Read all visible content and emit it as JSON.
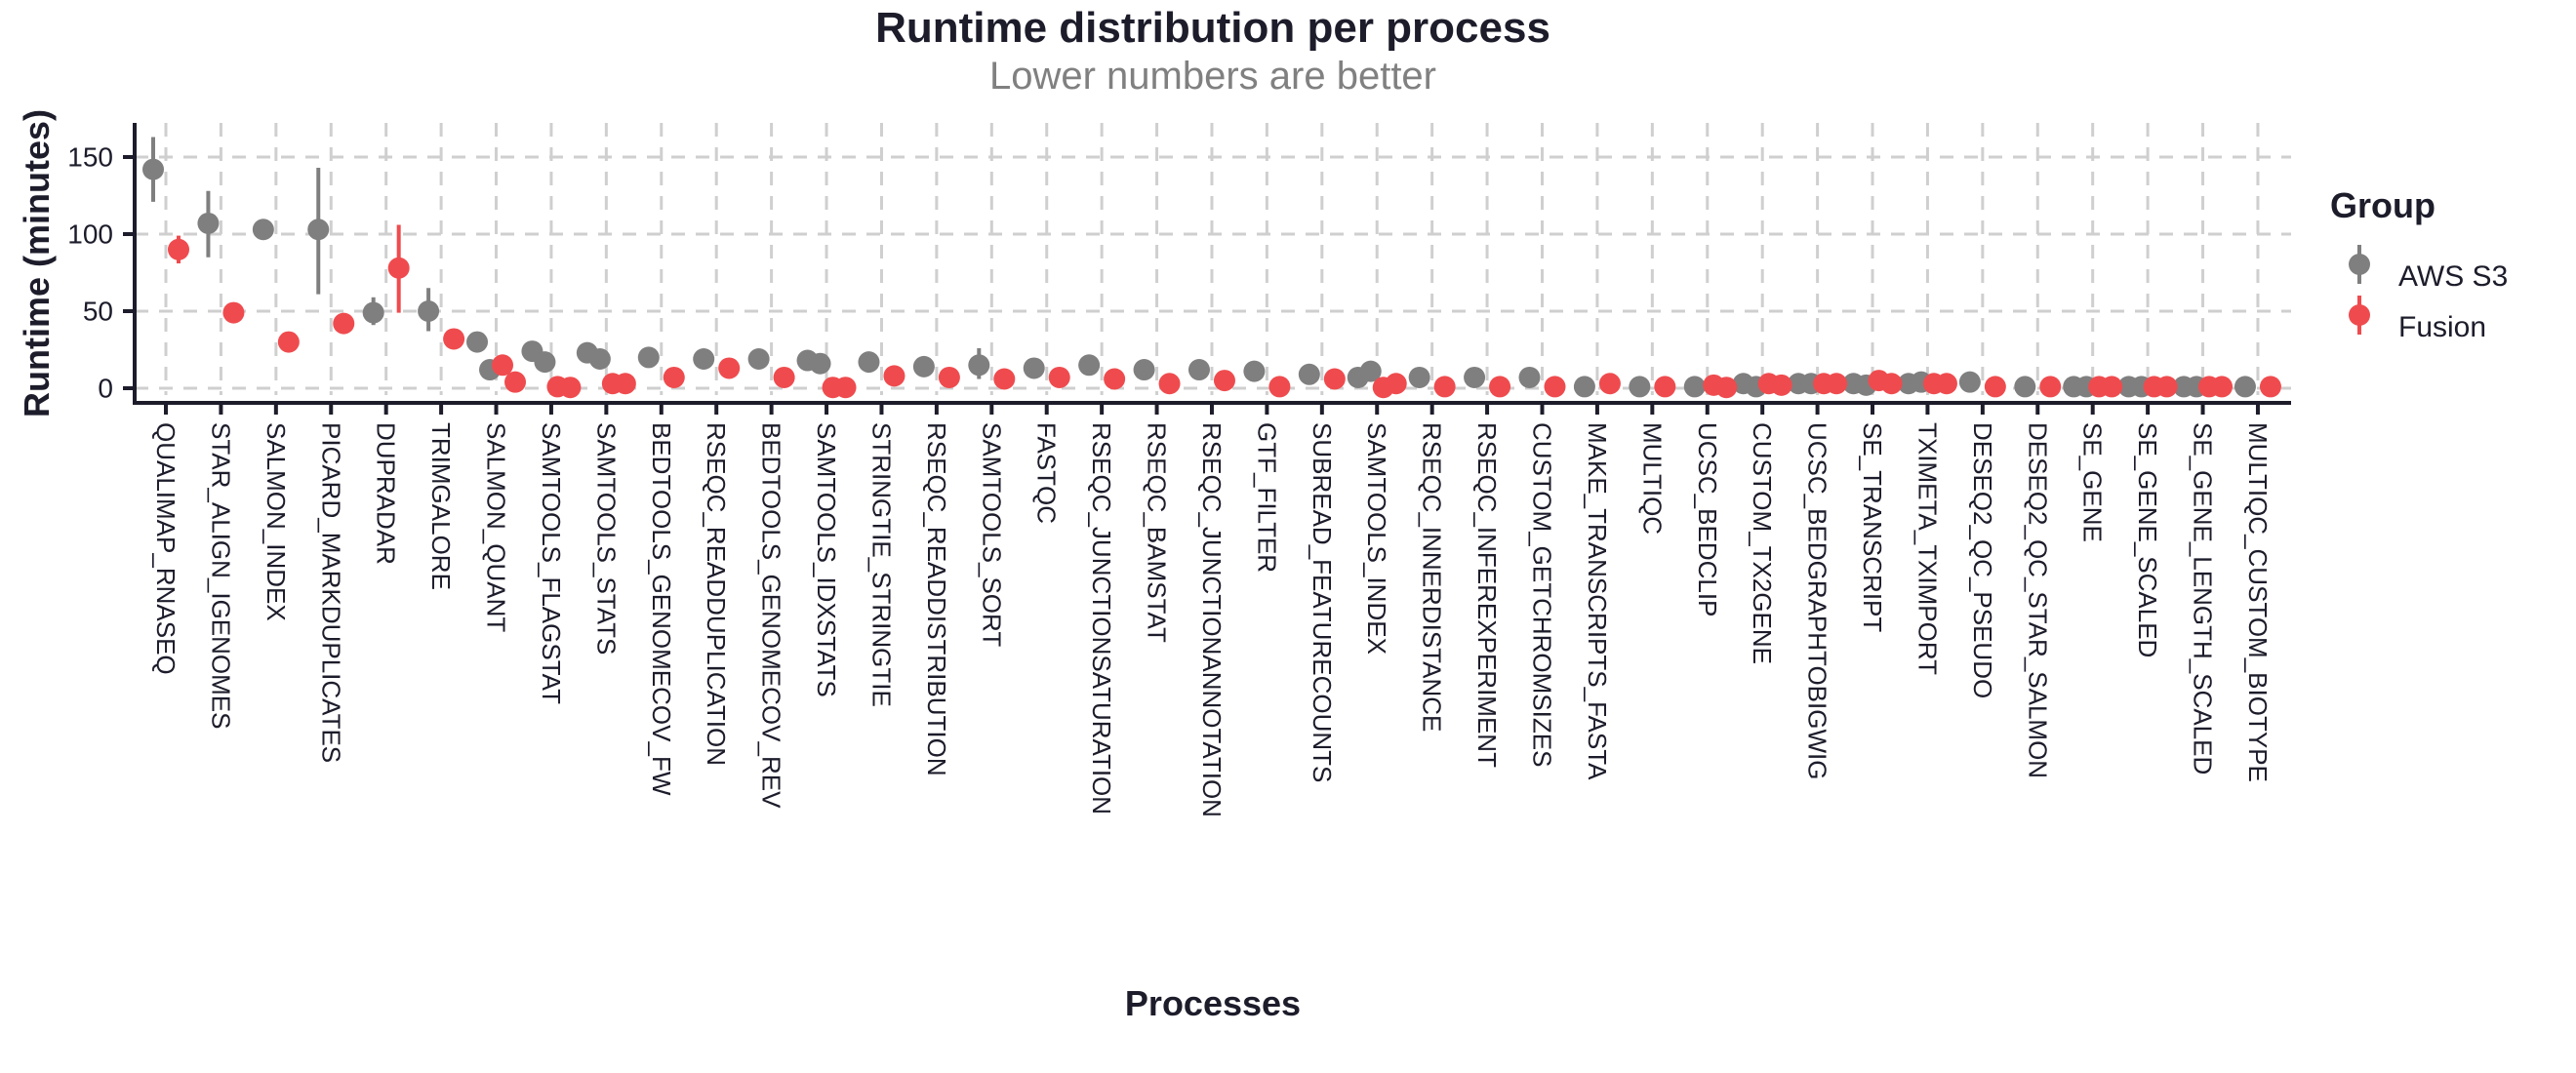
{
  "chart_data": {
    "type": "scatter",
    "style": "pointrange-dodged",
    "title": "Runtime distribution per process",
    "subtitle": "Lower numbers are better",
    "xlabel": "Processes",
    "ylabel": "Runtime (minutes)",
    "yticks": [
      0,
      50,
      100,
      150
    ],
    "ylim": [
      0,
      170
    ],
    "grid": "dashed-both-axes",
    "legend": {
      "title": "Group",
      "position": "right"
    },
    "categories": [
      "QUALIMAP_RNASEQ",
      "STAR_ALIGN_IGENOMES",
      "SALMON_INDEX",
      "PICARD_MARKDUPLICATES",
      "DUPRADAR",
      "TRIMGALORE",
      "SALMON_QUANT",
      "SAMTOOLS_FLAGSTAT",
      "SAMTOOLS_STATS",
      "BEDTOOLS_GENOMECOV_FW",
      "RSEQC_READDUPLICATION",
      "BEDTOOLS_GENOMECOV_REV",
      "SAMTOOLS_IDXSTATS",
      "STRINGTIE_STRINGTIE",
      "RSEQC_READDISTRIBUTION",
      "SAMTOOLS_SORT",
      "FASTQC",
      "RSEQC_JUNCTIONSATURATION",
      "RSEQC_BAMSTAT",
      "RSEQC_JUNCTIONANNOTATION",
      "GTF_FILTER",
      "SUBREAD_FEATURECOUNTS",
      "SAMTOOLS_INDEX",
      "RSEQC_INNERDISTANCE",
      "RSEQC_INFEREXPERIMENT",
      "CUSTOM_GETCHROMSIZES",
      "MAKE_TRANSCRIPTS_FASTA",
      "MULTIQC",
      "UCSC_BEDCLIP",
      "CUSTOM_TX2GENE",
      "UCSC_BEDGRAPHTOBIGWIG",
      "SE_TRANSCRIPT",
      "TXIMETA_TXIMPORT",
      "DESEQ2_QC_PSEUDO",
      "DESEQ2_QC_STAR_SALMON",
      "SE_GENE",
      "SE_GENE_SCALED",
      "SE_GENE_LENGTH_SCALED",
      "MULTIQC_CUSTOM_BIOTYPE"
    ],
    "series": [
      {
        "name": "AWS S3",
        "color": "#7f7f7f",
        "points": [
          {
            "y": [
              142
            ],
            "range": [
              121,
              163
            ]
          },
          {
            "y": [
              107
            ],
            "range": [
              85,
              128
            ]
          },
          {
            "y": [
              103
            ]
          },
          {
            "y": [
              103
            ],
            "range": [
              61,
              143
            ]
          },
          {
            "y": [
              49
            ],
            "range": [
              41,
              59
            ]
          },
          {
            "y": [
              50
            ],
            "range": [
              37,
              65
            ]
          },
          {
            "y": [
              30,
              12
            ]
          },
          {
            "y": [
              24,
              17
            ]
          },
          {
            "y": [
              23,
              19
            ]
          },
          {
            "y": [
              20
            ]
          },
          {
            "y": [
              19
            ]
          },
          {
            "y": [
              19
            ]
          },
          {
            "y": [
              18,
              16
            ]
          },
          {
            "y": [
              17
            ]
          },
          {
            "y": [
              14
            ]
          },
          {
            "y": [
              15
            ],
            "range": [
              6,
              26
            ]
          },
          {
            "y": [
              13
            ]
          },
          {
            "y": [
              15
            ]
          },
          {
            "y": [
              12
            ]
          },
          {
            "y": [
              12
            ]
          },
          {
            "y": [
              11
            ]
          },
          {
            "y": [
              9
            ]
          },
          {
            "y": [
              7,
              11
            ]
          },
          {
            "y": [
              7
            ]
          },
          {
            "y": [
              7
            ]
          },
          {
            "y": [
              7
            ]
          },
          {
            "y": [
              1
            ]
          },
          {
            "y": [
              1
            ]
          },
          {
            "y": [
              1
            ]
          },
          {
            "y": [
              3,
              1
            ]
          },
          {
            "y": [
              3,
              3
            ]
          },
          {
            "y": [
              3,
              2
            ]
          },
          {
            "y": [
              3,
              4
            ]
          },
          {
            "y": [
              4
            ]
          },
          {
            "y": [
              1
            ]
          },
          {
            "y": [
              1,
              1
            ]
          },
          {
            "y": [
              1,
              1
            ]
          },
          {
            "y": [
              1,
              1
            ]
          },
          {
            "y": [
              1
            ]
          }
        ]
      },
      {
        "name": "Fusion",
        "color": "#ef4b4e",
        "points": [
          {
            "y": [
              90
            ],
            "range": [
              81,
              99
            ]
          },
          {
            "y": [
              49
            ]
          },
          {
            "y": [
              30
            ]
          },
          {
            "y": [
              42
            ]
          },
          {
            "y": [
              78
            ],
            "range": [
              49,
              106
            ]
          },
          {
            "y": [
              32
            ]
          },
          {
            "y": [
              15,
              4
            ]
          },
          {
            "y": [
              1,
              0.5
            ]
          },
          {
            "y": [
              3,
              3
            ]
          },
          {
            "y": [
              7
            ]
          },
          {
            "y": [
              13
            ]
          },
          {
            "y": [
              7
            ]
          },
          {
            "y": [
              0.5,
              0.5
            ]
          },
          {
            "y": [
              8
            ]
          },
          {
            "y": [
              7
            ]
          },
          {
            "y": [
              6
            ]
          },
          {
            "y": [
              7
            ]
          },
          {
            "y": [
              6
            ]
          },
          {
            "y": [
              3
            ]
          },
          {
            "y": [
              5
            ]
          },
          {
            "y": [
              1
            ]
          },
          {
            "y": [
              6
            ]
          },
          {
            "y": [
              0.5,
              3
            ]
          },
          {
            "y": [
              1
            ]
          },
          {
            "y": [
              1
            ]
          },
          {
            "y": [
              1
            ]
          },
          {
            "y": [
              3
            ]
          },
          {
            "y": [
              1
            ]
          },
          {
            "y": [
              2,
              0.5
            ]
          },
          {
            "y": [
              3,
              2
            ]
          },
          {
            "y": [
              3,
              3
            ]
          },
          {
            "y": [
              5,
              3
            ]
          },
          {
            "y": [
              3,
              3
            ]
          },
          {
            "y": [
              1
            ]
          },
          {
            "y": [
              1
            ]
          },
          {
            "y": [
              1,
              1
            ]
          },
          {
            "y": [
              1,
              1
            ]
          },
          {
            "y": [
              1,
              1
            ]
          },
          {
            "y": [
              1
            ]
          }
        ]
      }
    ],
    "colors": {
      "axis": "#1c1c2b",
      "grid": "#cfcfcf",
      "title_text": "#1c1c2b",
      "subtitle_text": "#808080"
    }
  }
}
